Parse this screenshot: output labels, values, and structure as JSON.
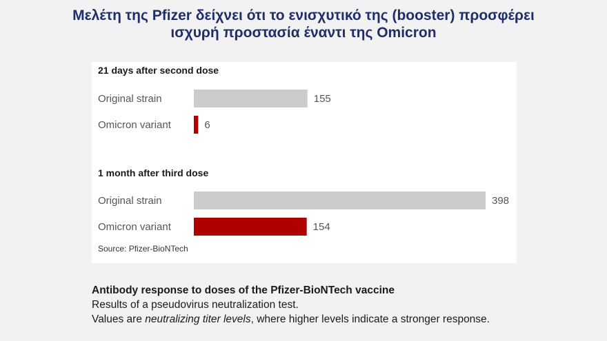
{
  "title": {
    "line1": "Μελέτη της Pfizer δείχνει ότι το ενισχυτικό της (booster) προσφέρει",
    "line2": "ισχυρή προστασία έναντι της Omicron"
  },
  "chart_data": {
    "type": "bar",
    "orientation": "horizontal",
    "groups": [
      {
        "title": "21 days after second dose",
        "bars": [
          {
            "label": "Original strain",
            "value": 155,
            "color": "#cdcbcb"
          },
          {
            "label": "Omicron variant",
            "value": 6,
            "color": "#b00000"
          }
        ]
      },
      {
        "title": "1 month after third dose",
        "bars": [
          {
            "label": "Original strain",
            "value": 398,
            "color": "#cdcbcb"
          },
          {
            "label": "Omicron variant",
            "value": 154,
            "color": "#b00000"
          }
        ]
      }
    ],
    "xlim": [
      0,
      398
    ],
    "grid": false,
    "source": "Source: Pfizer-BioNTech"
  },
  "caption": {
    "title": "Antibody response to doses of the Pfizer-BioNTech vaccine",
    "line1": "Results of a pseudovirus neutralization test.",
    "line2_prefix": "Values are ",
    "line2_emphasis": "neutralizing titer levels",
    "line2_suffix": ", where higher levels indicate a stronger response."
  }
}
